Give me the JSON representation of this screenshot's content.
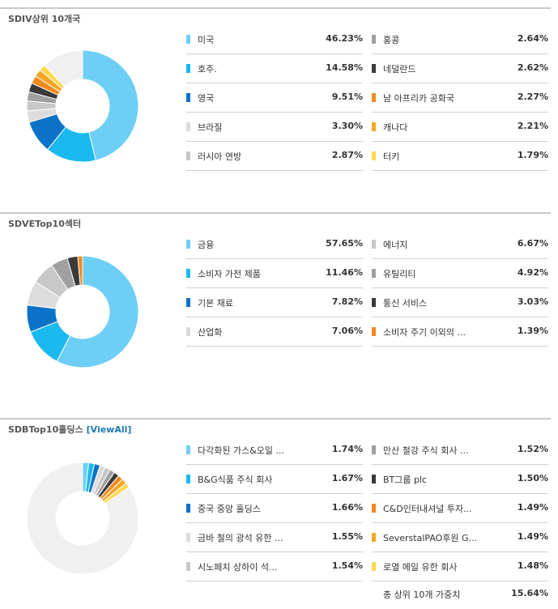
{
  "sections": [
    {
      "title": "SDIV상위 10개국",
      "view_all": "",
      "chart_data": {
        "type": "pie",
        "series": [
          {
            "values": [
              46.23,
              14.58,
              9.51,
              3.3,
              2.87,
              2.64,
              2.62,
              2.27,
              2.21,
              1.79,
              12.0
            ]
          }
        ],
        "categories": [
          "미국",
          "호주.",
          "영국",
          "브라질",
          "러시아 연방",
          "홍콩",
          "네덜란드",
          "남 아프리카 공화국",
          "캐나다",
          "터키",
          ""
        ],
        "colors": [
          "#6ecff6",
          "#1ab9f0",
          "#0a73c8",
          "#dcdcdc",
          "#c8c8c8",
          "#a0a0a0",
          "#3a3a3a",
          "#f18a1c",
          "#f5a623",
          "#ffd84d",
          "#f0f0f0"
        ]
      },
      "items": [
        {
          "label": "미국",
          "value": "46.23%",
          "color": "#6ecff6"
        },
        {
          "label": "호주.",
          "value": "14.58%",
          "color": "#1ab9f0"
        },
        {
          "label": "영국",
          "value": "9.51%",
          "color": "#0a73c8"
        },
        {
          "label": "브라질",
          "value": "3.30%",
          "color": "#dcdcdc"
        },
        {
          "label": "러시아 연방",
          "value": "2.87%",
          "color": "#c8c8c8"
        },
        {
          "label": "홍콩",
          "value": "2.64%",
          "color": "#a0a0a0"
        },
        {
          "label": "네덜란드",
          "value": "2.62%",
          "color": "#3a3a3a"
        },
        {
          "label": "남 아프리카 공화국",
          "value": "2.27%",
          "color": "#f18a1c"
        },
        {
          "label": "캐나다",
          "value": "2.21%",
          "color": "#f5a623"
        },
        {
          "label": "터키",
          "value": "1.79%",
          "color": "#ffd84d"
        }
      ]
    },
    {
      "title": "SDVETop10섹터",
      "view_all": "",
      "chart_data": {
        "type": "pie",
        "series": [
          {
            "values": [
              57.65,
              11.46,
              7.82,
              7.06,
              6.67,
              4.92,
              3.03,
              1.39
            ]
          }
        ],
        "categories": [
          "금융",
          "소비자 가전 제품",
          "기본 재료",
          "산업화",
          "에너지",
          "유틸리티",
          "통신 서비스",
          "소비자 주기 이외의 ..."
        ],
        "colors": [
          "#6ecff6",
          "#1ab9f0",
          "#0a73c8",
          "#dcdcdc",
          "#c8c8c8",
          "#a0a0a0",
          "#3a3a3a",
          "#f18a1c"
        ]
      },
      "items": [
        {
          "label": "금융",
          "value": "57.65%",
          "color": "#6ecff6"
        },
        {
          "label": "소비자 가전 제품",
          "value": "11.46%",
          "color": "#1ab9f0"
        },
        {
          "label": "기본 재료",
          "value": "7.82%",
          "color": "#0a73c8"
        },
        {
          "label": "산업화",
          "value": "7.06%",
          "color": "#dcdcdc"
        },
        {
          "label": "에너지",
          "value": "6.67%",
          "color": "#c8c8c8"
        },
        {
          "label": "유틸리티",
          "value": "4.92%",
          "color": "#a0a0a0"
        },
        {
          "label": "통신 서비스",
          "value": "3.03%",
          "color": "#3a3a3a"
        },
        {
          "label": "소비자 주기 이외의 ...",
          "value": "1.39%",
          "color": "#f18a1c"
        }
      ]
    },
    {
      "title": "SDBTop10홀딩스",
      "view_all": "[ViewAll]",
      "chart_data": {
        "type": "pie",
        "series": [
          {
            "values": [
              1.74,
              1.67,
              1.66,
              1.55,
              1.54,
              1.52,
              1.5,
              1.49,
              1.49,
              1.48,
              84.36
            ]
          }
        ],
        "categories": [
          "다각화된 가스&오일 ...",
          "B&G식품 주식 회사",
          "중국 중앙 홀딩스",
          "금바 철의 광석 유한 ...",
          "시노페치 상하이 석...",
          "만산 철강 주식 회사 ...",
          "BT그룹 plc",
          "C&D인터내셔널 투자...",
          "SeverstalPAO후원 G...",
          "로열 메일 유한 회사",
          ""
        ],
        "colors": [
          "#6ecff6",
          "#1ab9f0",
          "#0a73c8",
          "#dcdcdc",
          "#c8c8c8",
          "#a0a0a0",
          "#3a3a3a",
          "#f18a1c",
          "#f5a623",
          "#ffd84d",
          "#f0f0f0"
        ]
      },
      "items": [
        {
          "label": "다각화된 가스&오일 ...",
          "value": "1.74%",
          "color": "#6ecff6"
        },
        {
          "label": "B&G식품 주식 회사",
          "value": "1.67%",
          "color": "#1ab9f0"
        },
        {
          "label": "중국 중앙 홀딩스",
          "value": "1.66%",
          "color": "#0a73c8"
        },
        {
          "label": "금바 철의 광석 유한 ...",
          "value": "1.55%",
          "color": "#dcdcdc"
        },
        {
          "label": "시노페치 상하이 석...",
          "value": "1.54%",
          "color": "#c8c8c8"
        },
        {
          "label": "만산 철강 주식 회사 ...",
          "value": "1.52%",
          "color": "#a0a0a0"
        },
        {
          "label": "BT그룹 plc",
          "value": "1.50%",
          "color": "#3a3a3a"
        },
        {
          "label": "C&D인터내셔널 투자...",
          "value": "1.49%",
          "color": "#f18a1c"
        },
        {
          "label": "SeverstalPAO후원 G...",
          "value": "1.49%",
          "color": "#f5a623"
        },
        {
          "label": "로열 메일 유한 회사",
          "value": "1.48%",
          "color": "#ffd84d"
        }
      ],
      "total": {
        "label": "총 상위 10개 가중치",
        "value": "15.64%"
      }
    }
  ]
}
